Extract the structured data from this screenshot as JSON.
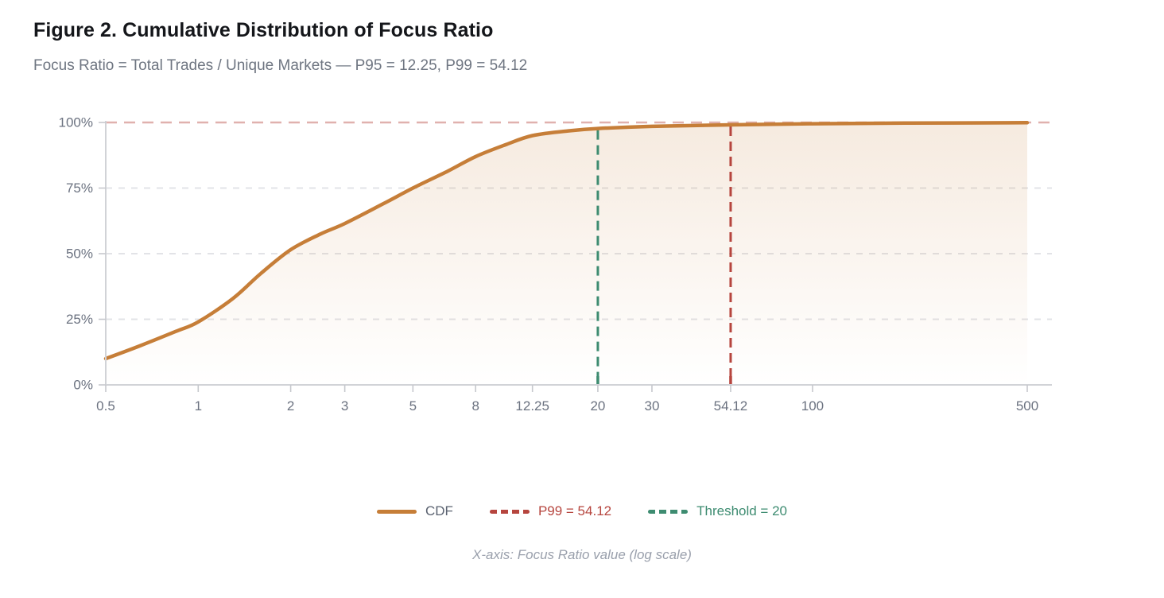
{
  "header": {
    "title": "Figure 2. Cumulative Distribution of Focus Ratio",
    "subtitle": "Focus Ratio = Total Trades / Unique Markets — P95 = 12.25, P99 = 54.12"
  },
  "footer": {
    "caption": "X-axis: Focus Ratio value (log scale)"
  },
  "legend": {
    "items": [
      {
        "label": "CDF",
        "style": "solid",
        "color": "#C67E38",
        "label_color": "#5A6270"
      },
      {
        "label": "P99 = 54.12",
        "style": "dashed",
        "color": "#B6453E",
        "label_color": "#B6453E"
      },
      {
        "label": "Threshold = 20",
        "style": "dashed",
        "color": "#3E8C71",
        "label_color": "#3E8C71"
      }
    ]
  },
  "colors": {
    "background": "#FFFFFF",
    "title": "#14161A",
    "subtitle": "#6E7581",
    "tick_label": "#6B7280",
    "grid_line": "#E2E3E7",
    "axis_line": "#D1D3D7",
    "tick_mark": "#C6C8CD",
    "footer_text": "#9AA0AC",
    "curve": "#C67E38",
    "p99": "#B6453E",
    "threshold": "#3E8C71"
  },
  "chart_data": {
    "type": "line",
    "title": "Cumulative Distribution of Focus Ratio",
    "x_scale": "log",
    "xlabel": "Focus Ratio value (log scale)",
    "ylabel": "",
    "xlim": [
      0.5,
      600
    ],
    "ylim": [
      0,
      100
    ],
    "grid": "horizontal-dashed",
    "legend_position": "bottom-center",
    "x_ticks": [
      0.5,
      1,
      2,
      3,
      5,
      8,
      12.25,
      20,
      30,
      54.12,
      100,
      500
    ],
    "x_tick_labels": [
      "0.5",
      "1",
      "2",
      "3",
      "5",
      "8",
      "12.25",
      "20",
      "30",
      "54.12",
      "100",
      "500"
    ],
    "y_ticks": [
      0,
      25,
      50,
      75,
      100
    ],
    "y_tick_labels": [
      "0%",
      "25%",
      "50%",
      "75%",
      "100%"
    ],
    "series": [
      {
        "name": "CDF",
        "color": "#C67E38",
        "fill": "gradient",
        "points": [
          [
            0.5,
            10
          ],
          [
            0.65,
            15
          ],
          [
            0.85,
            20.5
          ],
          [
            1,
            24
          ],
          [
            1.3,
            33
          ],
          [
            1.6,
            42.5
          ],
          [
            2,
            51.5
          ],
          [
            2.5,
            57.5
          ],
          [
            3,
            61.5
          ],
          [
            4,
            69
          ],
          [
            5,
            75
          ],
          [
            6.5,
            81.5
          ],
          [
            8,
            87
          ],
          [
            10,
            91.5
          ],
          [
            12.25,
            95
          ],
          [
            16,
            96.8
          ],
          [
            20,
            97.7
          ],
          [
            30,
            98.5
          ],
          [
            54.12,
            99.1
          ],
          [
            100,
            99.5
          ],
          [
            200,
            99.75
          ],
          [
            500,
            99.9
          ]
        ]
      }
    ],
    "reference_lines": [
      {
        "orientation": "horizontal",
        "value": 100,
        "color": "#B6453E",
        "opacity": 0.42,
        "name": "cap-100pct"
      },
      {
        "orientation": "vertical",
        "value": 20,
        "label": "Threshold = 20",
        "color": "#3E8C71",
        "name": "threshold"
      },
      {
        "orientation": "vertical",
        "value": 54.12,
        "label": "P99 = 54.12",
        "color": "#B6453E",
        "name": "p99"
      }
    ],
    "stats": {
      "p95": 12.25,
      "p99": 54.12,
      "threshold": 20
    }
  }
}
